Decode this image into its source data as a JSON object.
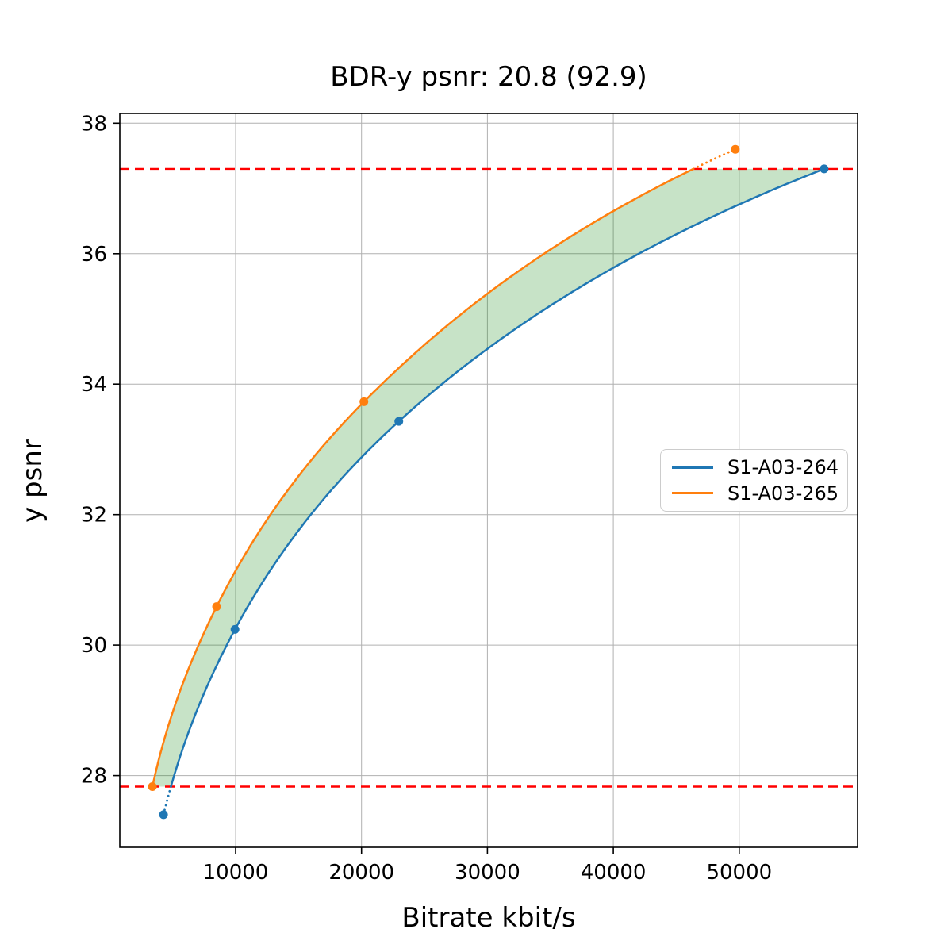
{
  "figure": {
    "title": "BDR-y psnr: 20.8 (92.9)",
    "xlabel": "Bitrate kbit/s",
    "ylabel": "y psnr"
  },
  "chart_data": {
    "type": "line",
    "title": "BDR-y psnr: 20.8 (92.9)",
    "bdr_value": "20.8",
    "bdr_secondary_value": "92.9",
    "xlabel": "Bitrate kbit/s",
    "ylabel": "y psnr",
    "xlim": [
      800,
      59400
    ],
    "ylim": [
      26.9,
      38.15
    ],
    "grid": true,
    "x_ticks": [
      {
        "value": 10000,
        "label": "10000"
      },
      {
        "value": 20000,
        "label": "20000"
      },
      {
        "value": 30000,
        "label": "30000"
      },
      {
        "value": 40000,
        "label": "40000"
      },
      {
        "value": 50000,
        "label": "50000"
      }
    ],
    "y_ticks": [
      {
        "value": 28,
        "label": "28"
      },
      {
        "value": 30,
        "label": "30"
      },
      {
        "value": 32,
        "label": "32"
      },
      {
        "value": 34,
        "label": "34"
      },
      {
        "value": 36,
        "label": "36"
      },
      {
        "value": 38,
        "label": "38"
      }
    ],
    "series": [
      {
        "name": "S1-A03-264",
        "color": "#1f77b4",
        "points": [
          [
            4270,
            27.4
          ],
          [
            9950,
            30.24
          ],
          [
            22960,
            33.43
          ],
          [
            56740,
            37.3
          ]
        ]
      },
      {
        "name": "S1-A03-265",
        "color": "#ff7f0e",
        "points": [
          [
            3390,
            27.83
          ],
          [
            8490,
            30.59
          ],
          [
            20190,
            33.73
          ],
          [
            49690,
            37.6
          ]
        ]
      }
    ],
    "overlap_band": {
      "psnr_low": 27.83,
      "psnr_high": 37.3,
      "fill_color": "#008000",
      "fill_opacity": 0.22
    },
    "reference_lines": [
      {
        "y": 27.83,
        "color": "#ff0000",
        "style": "dashed"
      },
      {
        "y": 37.3,
        "color": "#ff0000",
        "style": "dashed"
      }
    ],
    "legend_position": "center right",
    "grid_color": "#b0b0b0",
    "spine_color": "#000000",
    "background_color": "#ffffff"
  }
}
